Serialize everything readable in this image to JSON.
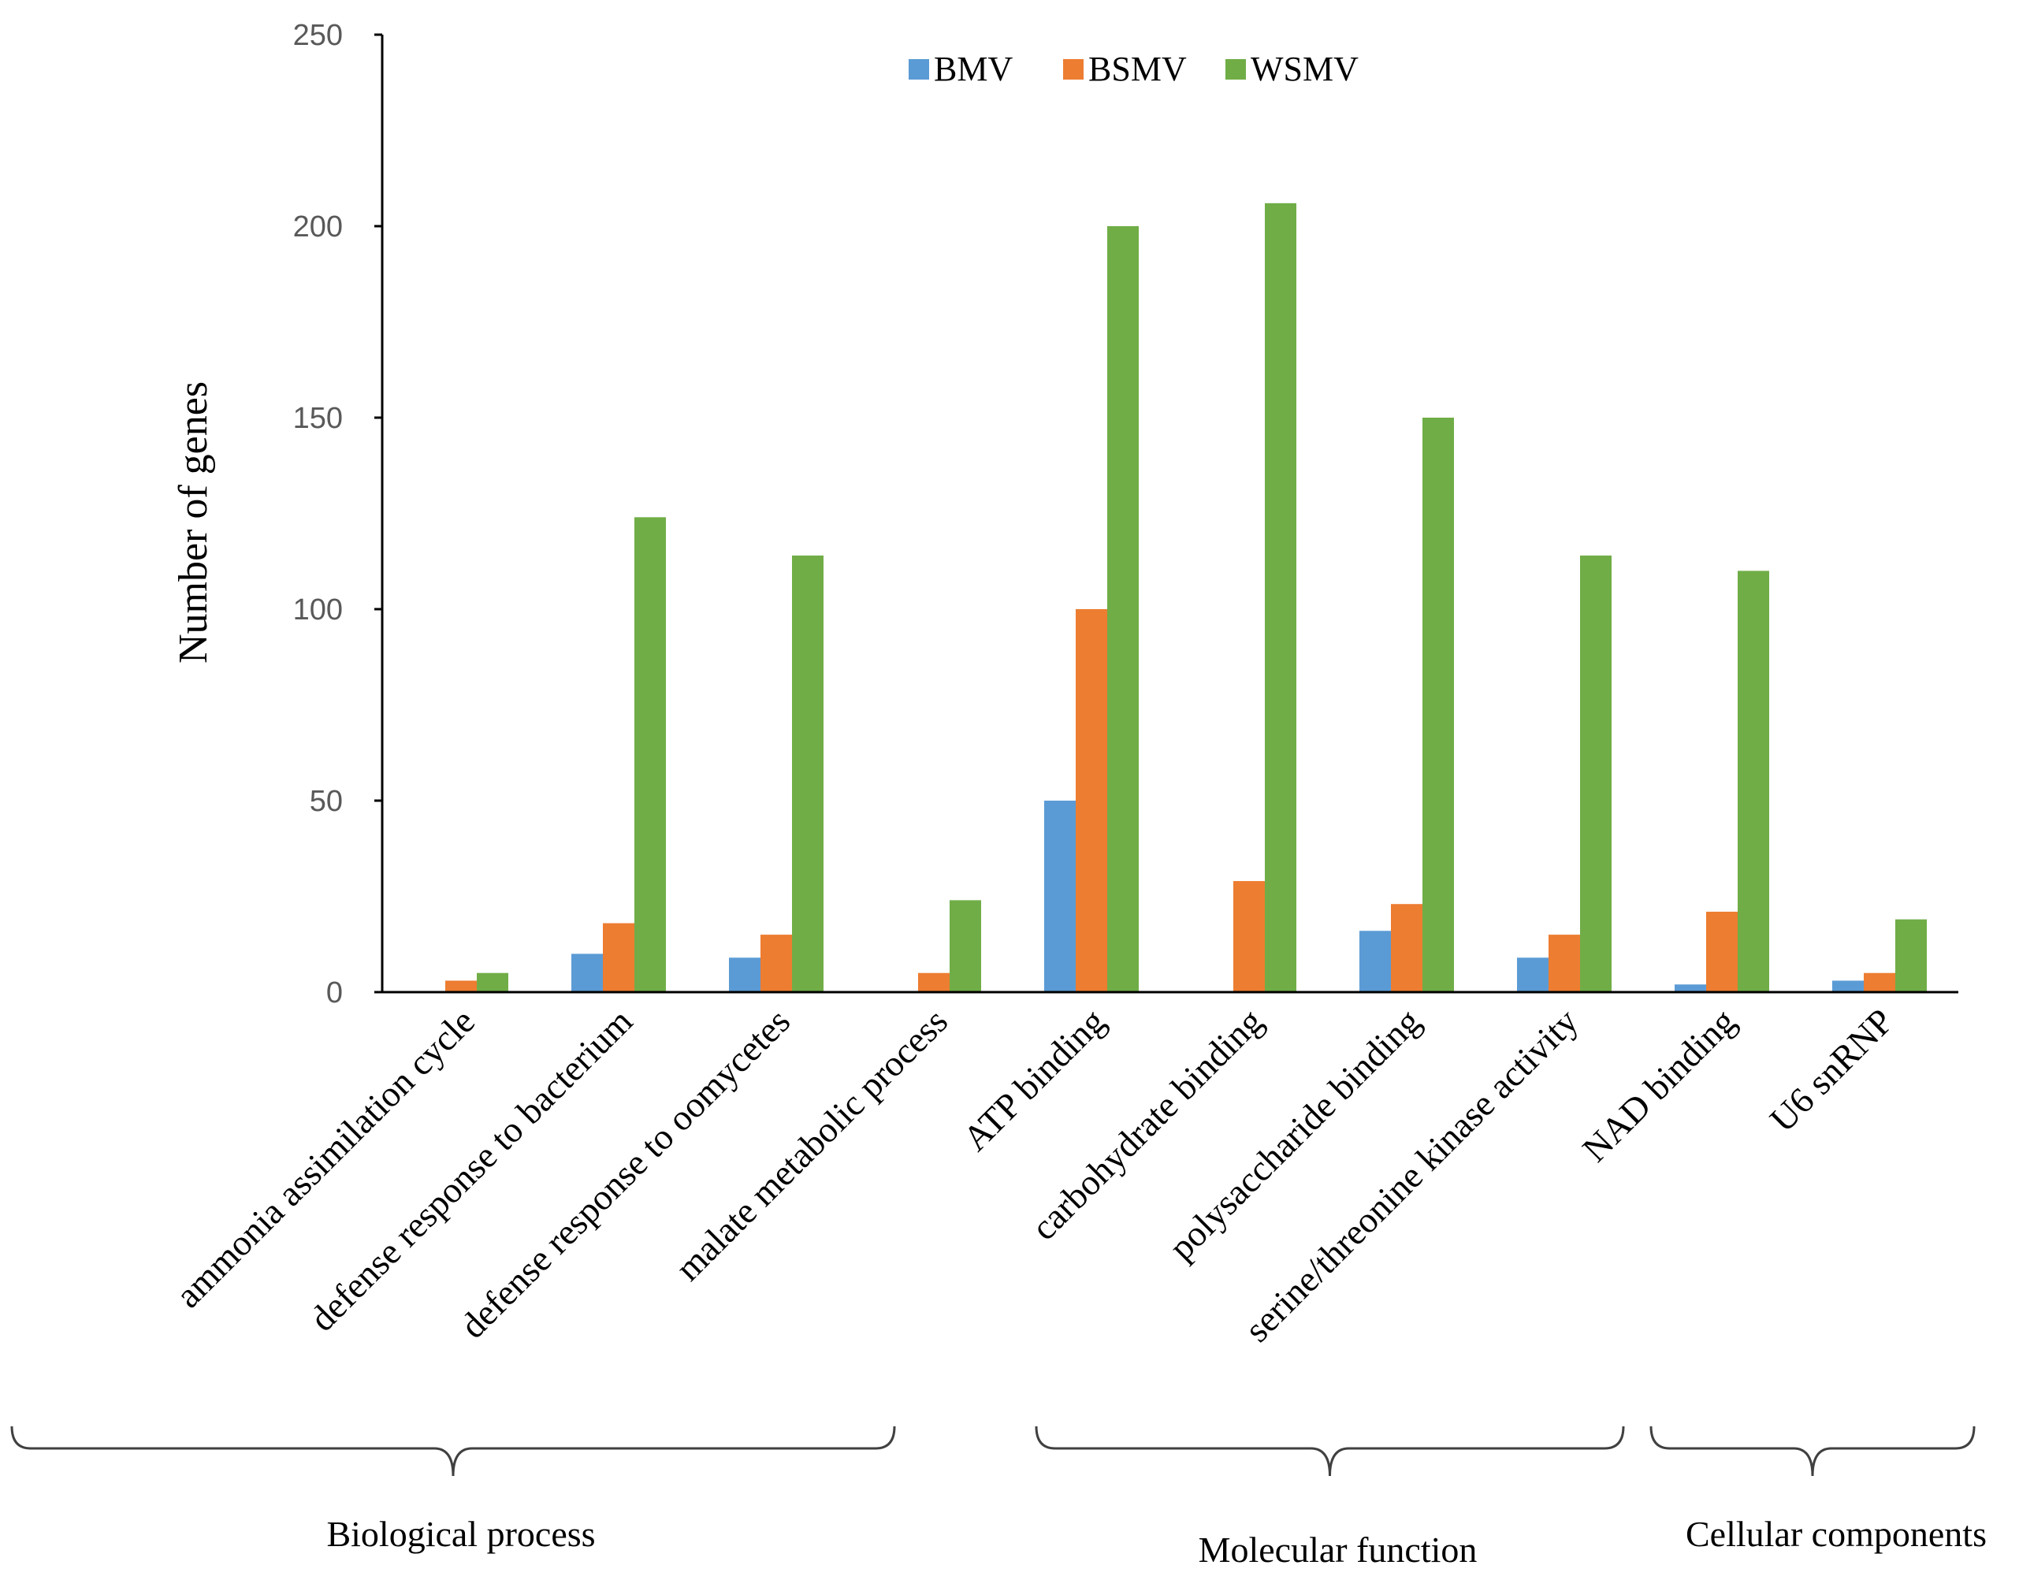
{
  "chart_data": {
    "type": "bar",
    "title": "",
    "xlabel": "",
    "ylabel": "Number of genes",
    "ylim": [
      0,
      250
    ],
    "yticks": [
      0,
      50,
      100,
      150,
      200,
      250
    ],
    "grid": false,
    "legend_position": "top-center",
    "categories": [
      "ammonia assimilation cycle",
      "defense response to bacterium",
      "defense response to oomycetes",
      "malate metabolic process",
      "ATP binding",
      "carbohydrate binding",
      "polysaccharide binding",
      "serine/threonine kinase activity",
      "NAD binding",
      "U6 snRNP"
    ],
    "series": [
      {
        "name": "BMV",
        "color": "#5B9BD5",
        "values": [
          0,
          10,
          9,
          0,
          50,
          0,
          16,
          9,
          2,
          3
        ]
      },
      {
        "name": "BSMV",
        "color": "#ED7D31",
        "values": [
          3,
          18,
          15,
          5,
          100,
          29,
          23,
          15,
          21,
          5
        ]
      },
      {
        "name": "WSMV",
        "color": "#70AD47",
        "values": [
          5,
          124,
          114,
          24,
          200,
          206,
          150,
          114,
          110,
          19
        ]
      }
    ],
    "groups": [
      {
        "label": "Biological process",
        "start": 0,
        "end": 3
      },
      {
        "label": "Molecular function",
        "start": 4,
        "end": 7
      },
      {
        "label": "Cellular components",
        "start": 8,
        "end": 9
      }
    ]
  }
}
